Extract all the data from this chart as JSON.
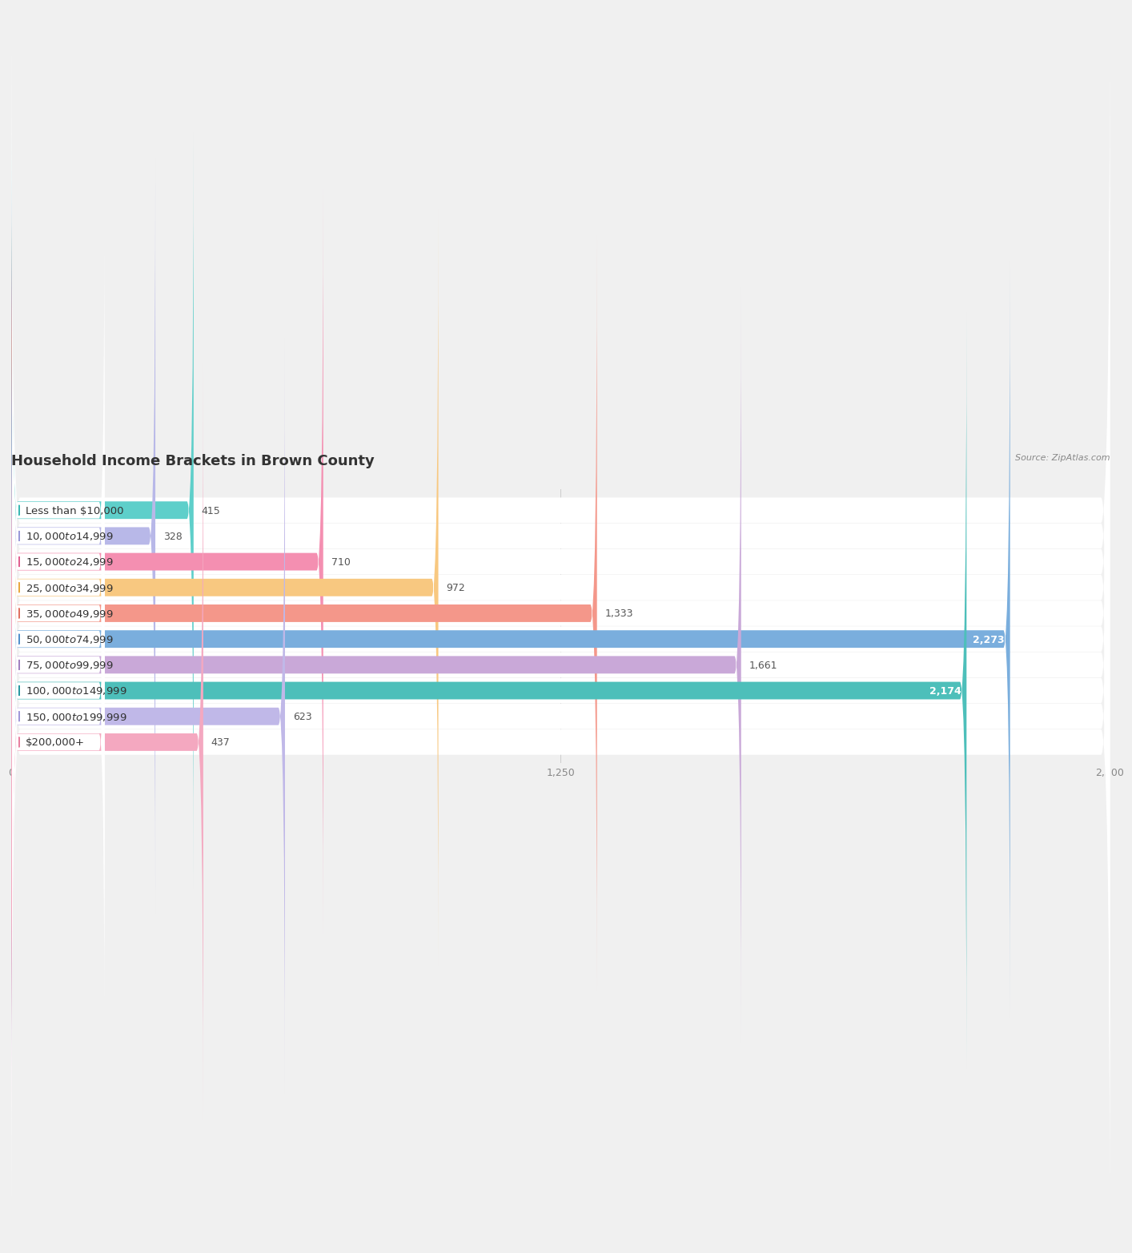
{
  "title": "Household Income Brackets in Brown County",
  "source": "Source: ZipAtlas.com",
  "categories": [
    "Less than $10,000",
    "$10,000 to $14,999",
    "$15,000 to $24,999",
    "$25,000 to $34,999",
    "$35,000 to $49,999",
    "$50,000 to $74,999",
    "$75,000 to $99,999",
    "$100,000 to $149,999",
    "$150,000 to $199,999",
    "$200,000+"
  ],
  "values": [
    415,
    328,
    710,
    972,
    1333,
    2273,
    1661,
    2174,
    623,
    437
  ],
  "bar_colors": [
    "#5ecfca",
    "#b8b8e8",
    "#f48fb1",
    "#f8c880",
    "#f4978a",
    "#7aaedd",
    "#c9a8d8",
    "#4dbfba",
    "#c0b8e8",
    "#f4a8c0"
  ],
  "label_dot_colors": [
    "#3ab8b2",
    "#9898d8",
    "#e06090",
    "#e8a840",
    "#e07060",
    "#5090cc",
    "#a080c0",
    "#2898a0",
    "#a098d8",
    "#e880a0"
  ],
  "xlim": [
    0,
    2500
  ],
  "xticks": [
    0,
    1250,
    2500
  ],
  "background_color": "#f0f0f0",
  "row_bg_color": "#ffffff",
  "title_fontsize": 13,
  "label_fontsize": 9.5,
  "value_fontsize": 9,
  "value_threshold": 1900
}
